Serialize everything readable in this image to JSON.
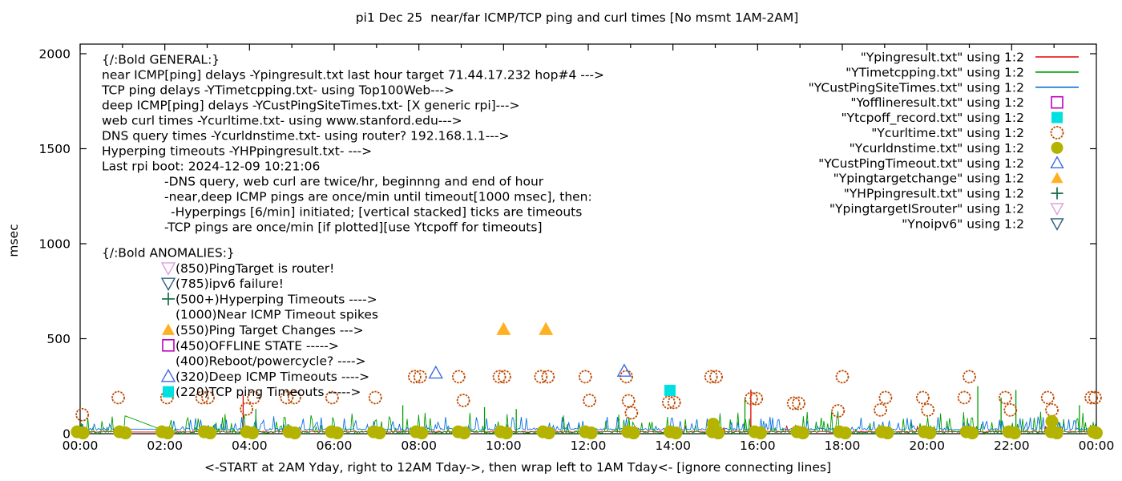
{
  "title": "pi1 Dec 25  near/far ICMP/TCP ping and curl times [No msmt 1AM-2AM]",
  "axes": {
    "ylabel": "msec",
    "xlabel": "<-START at 2AM Yday, right to 12AM Tday->, then wrap left to 1AM Tday<- [ignore connecting lines]",
    "yticks": [
      0,
      500,
      1000,
      1500,
      2000
    ],
    "xticks": [
      {
        "hour": 0,
        "label": "00:00"
      },
      {
        "hour": 2,
        "label": "02:00"
      },
      {
        "hour": 4,
        "label": "04:00"
      },
      {
        "hour": 6,
        "label": "06:00"
      },
      {
        "hour": 8,
        "label": "08:00"
      },
      {
        "hour": 10,
        "label": "10:00"
      },
      {
        "hour": 12,
        "label": "12:00"
      },
      {
        "hour": 14,
        "label": "14:00"
      },
      {
        "hour": 16,
        "label": "16:00"
      },
      {
        "hour": 18,
        "label": "18:00"
      },
      {
        "hour": 20,
        "label": "20:00"
      },
      {
        "hour": 22,
        "label": "22:00"
      },
      {
        "hour": 24,
        "label": "00:00"
      }
    ]
  },
  "legend": {
    "entries": [
      {
        "label": "\"Ypingresult.txt\" using 1:2",
        "marker": "line",
        "color": "#e60000"
      },
      {
        "label": "\"YTimetcpping.txt\" using 1:2",
        "marker": "line",
        "color": "#009e00"
      },
      {
        "label": "\"YCustPingSiteTimes.txt\" using 1:2",
        "marker": "line",
        "color": "#0b72dd"
      },
      {
        "label": "\"Yofflineresult.txt\" using 1:2",
        "marker": "square-open",
        "color": "#c000c0"
      },
      {
        "label": "\"Ytcpoff_record.txt\" using 1:2",
        "marker": "square-filled",
        "color": "#00e0e0"
      },
      {
        "label": "\"Ycurltime.txt\" using 1:2",
        "marker": "circle-open",
        "color": "#c04800"
      },
      {
        "label": "\"Ycurldnstime.txt\" using 1:2",
        "marker": "circle-filled",
        "color": "#b3b300"
      },
      {
        "label": "\"YCustPingTimeout.txt\" using 1:2",
        "marker": "triangle-up-open",
        "color": "#4169e1"
      },
      {
        "label": "\"Ypingtargetchange\" using 1:2",
        "marker": "triangle-up-filled",
        "color": "#ffb023"
      },
      {
        "label": "\"YHPpingresult.txt\" using 1:2",
        "marker": "plus",
        "color": "#1d7355"
      },
      {
        "label": "\"YpingtargetISrouter\" using 1:2",
        "marker": "triangle-down-open",
        "color": "#dda0dd"
      },
      {
        "label": "\"Ynoipv6\" using 1:2",
        "marker": "triangle-down-open",
        "color": "#2d5f80"
      }
    ]
  },
  "annotations": {
    "general": {
      "lines": [
        {
          "text": "{/:Bold GENERAL:}",
          "indent": 0
        },
        {
          "text": "near ICMP[ping] delays -Ypingresult.txt last hour target 71.44.17.232 hop#4 --->",
          "indent": 0
        },
        {
          "text": "TCP ping delays -YTimetcpping.txt- using Top100Web--->",
          "indent": 0
        },
        {
          "text": "deep ICMP[ping] delays -YCustPingSiteTimes.txt- [X generic rpi]--->",
          "indent": 0
        },
        {
          "text": "web curl times -Ycurltime.txt- using www.stanford.edu--->",
          "indent": 0
        },
        {
          "text": "DNS query times -Ycurldnstime.txt- using router? 192.168.1.1--->",
          "indent": 0
        },
        {
          "text": "Hyperping timeouts -YHPpingresult.txt- --->",
          "indent": 0
        },
        {
          "text": "Last rpi boot: 2024-12-09 10:21:06",
          "indent": 0
        },
        {
          "text": "-DNS query, web curl are twice/hr, beginnng and end of hour",
          "indent": 78
        },
        {
          "text": "-near,deep ICMP pings are once/min until timeout[1000 msec], then:",
          "indent": 78
        },
        {
          "text": "-Hyperpings [6/min] initiated; [vertical stacked] ticks are timeouts",
          "indent": 86
        },
        {
          "text": "-TCP pings are once/min [if plotted][use Ytcpoff for timeouts]",
          "indent": 78
        }
      ]
    },
    "anomalies": {
      "header": "{/:Bold ANOMALIES:}",
      "rows": [
        {
          "text": "(850)PingTarget is router!",
          "marker": "triangle-down-open",
          "color": "#dda0dd"
        },
        {
          "text": "(785)ipv6 failure!",
          "marker": "triangle-down-open",
          "color": "#2d5f80"
        },
        {
          "text": "(500+)Hyperping Timeouts ---->",
          "marker": "plus",
          "color": "#1d7355"
        },
        {
          "text": "(1000)Near ICMP Timeout spikes",
          "marker": "none",
          "color": "#000000"
        },
        {
          "text": "(550)Ping Target Changes --->",
          "marker": "triangle-up-filled",
          "color": "#ffb023"
        },
        {
          "text": "(450)OFFLINE STATE ----->",
          "marker": "square-open",
          "color": "#c000c0"
        },
        {
          "text": "(400)Reboot/powercycle? ---->",
          "marker": "none",
          "color": "#000000"
        },
        {
          "text": "(320)Deep ICMP Timeouts ---->",
          "marker": "triangle-up-open",
          "color": "#4169e1"
        },
        {
          "text": "(220)TCP ping Timeouts ----->",
          "marker": "square-filled",
          "color": "#00e0e0"
        }
      ]
    }
  },
  "chart_data": {
    "type": "line",
    "x_range_hours": [
      0,
      24
    ],
    "ylim": [
      0,
      2000
    ],
    "ylabel": "msec",
    "grid": false,
    "legend_position": "top-right",
    "no_measurement_gap_hours": [
      1.05,
      2.0
    ],
    "series": [
      {
        "name": "Ypingresult.txt",
        "color": "#e60000",
        "base_msec": 7,
        "jitter": 7,
        "spike_p": 0.015,
        "spike_max": 35,
        "gap_msec": 9,
        "tall_spikes": [
          [
            3.85,
            205
          ],
          [
            15.84,
            232
          ]
        ]
      },
      {
        "name": "YTimetcpping.txt",
        "color": "#009e00",
        "base_msec": 3,
        "jitter": 9,
        "spike_p": 0.32,
        "spike_max": 110,
        "gap_msec": 15,
        "gap_connector": {
          "from": [
            1.05,
            95
          ],
          "to": [
            2.0,
            15
          ]
        },
        "tall_spikes": [
          [
            4.15,
            130
          ],
          [
            7.62,
            150
          ],
          [
            9.55,
            140
          ],
          [
            10.3,
            130
          ],
          [
            15.7,
            185
          ],
          [
            21.2,
            250
          ],
          [
            21.75,
            190
          ],
          [
            22.1,
            230
          ],
          [
            23.6,
            150
          ]
        ]
      },
      {
        "name": "YCustPingSiteTimes.txt",
        "color": "#0b72dd",
        "base_msec": 18,
        "jitter": 10,
        "spike_p": 0.28,
        "spike_max": 70,
        "gap_msec": 24,
        "tall_spikes": []
      }
    ],
    "noise_seed": 20241225,
    "scatter": [
      {
        "name": "Ycurltime.txt",
        "marker": "circle-open",
        "color": "#c04800",
        "size": 7.5,
        "points": [
          [
            0.05,
            100
          ],
          [
            0.9,
            190
          ],
          [
            2.05,
            190
          ],
          [
            2.88,
            190
          ],
          [
            3.02,
            190
          ],
          [
            3.93,
            130
          ],
          [
            4.1,
            190
          ],
          [
            4.88,
            190
          ],
          [
            5.06,
            190
          ],
          [
            5.95,
            190
          ],
          [
            6.97,
            190
          ],
          [
            7.9,
            300
          ],
          [
            8.03,
            300
          ],
          [
            8.94,
            300
          ],
          [
            9.05,
            175
          ],
          [
            9.9,
            300
          ],
          [
            10.02,
            300
          ],
          [
            10.88,
            300
          ],
          [
            11.05,
            300
          ],
          [
            11.93,
            300
          ],
          [
            12.03,
            175
          ],
          [
            12.9,
            300
          ],
          [
            12.95,
            173
          ],
          [
            13.02,
            110
          ],
          [
            13.9,
            165
          ],
          [
            14.03,
            165
          ],
          [
            14.9,
            300
          ],
          [
            15.02,
            300
          ],
          [
            15.85,
            185
          ],
          [
            15.97,
            185
          ],
          [
            16.85,
            160
          ],
          [
            16.97,
            160
          ],
          [
            17.9,
            120
          ],
          [
            18.0,
            300
          ],
          [
            18.9,
            125
          ],
          [
            19.02,
            190
          ],
          [
            19.9,
            190
          ],
          [
            20.02,
            125
          ],
          [
            20.88,
            190
          ],
          [
            21.0,
            300
          ],
          [
            21.85,
            190
          ],
          [
            21.97,
            125
          ],
          [
            22.85,
            190
          ],
          [
            22.95,
            125
          ],
          [
            23.88,
            190
          ],
          [
            23.97,
            190
          ]
        ]
      },
      {
        "name": "Ycurldnstime.txt",
        "marker": "circle-filled",
        "color": "#b3b300",
        "size": 8,
        "pattern": {
          "type": "hourly-pairs",
          "hour_start": 0,
          "hour_end": 24,
          "msec": 4
        },
        "extra_points": [
          [
            14.95,
            50
          ],
          [
            22.95,
            65
          ]
        ]
      },
      {
        "name": "YCustPingTimeout.txt",
        "marker": "triangle-up-open",
        "color": "#4169e1",
        "size": 8,
        "points": [
          [
            8.4,
            320
          ],
          [
            12.85,
            330
          ]
        ]
      },
      {
        "name": "Ypingtargetchange",
        "marker": "triangle-up-filled",
        "color": "#ffb023",
        "size": 9,
        "points": [
          [
            10.0,
            550
          ],
          [
            11.0,
            550
          ]
        ]
      },
      {
        "name": "Ytcpoff_record.txt",
        "marker": "square-filled",
        "color": "#00e0e0",
        "size": 7,
        "points": [
          [
            13.93,
            228
          ]
        ]
      }
    ]
  },
  "layout_colors": {
    "axis": "#000000",
    "background": "#ffffff"
  }
}
